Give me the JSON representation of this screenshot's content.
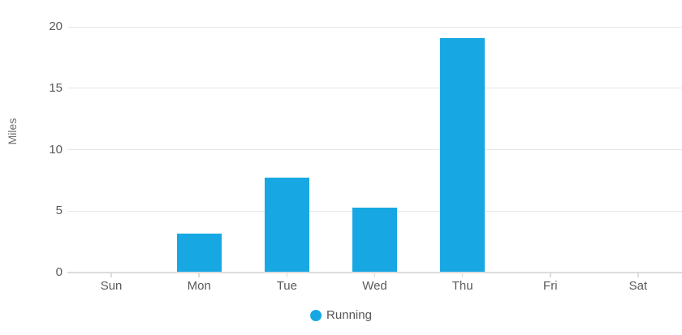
{
  "chart_data": {
    "type": "bar",
    "title": "",
    "categories": [
      "Sun",
      "Mon",
      "Tue",
      "Wed",
      "Thu",
      "Fri",
      "Sat"
    ],
    "series": [
      {
        "name": "Running",
        "values": [
          0,
          3.2,
          7.7,
          5.3,
          19.1,
          0,
          0
        ],
        "color": "#17a8e3"
      }
    ],
    "xlabel": "",
    "ylabel": "Miles",
    "ylim": [
      0,
      20
    ],
    "yticks": [
      0,
      5,
      10,
      15,
      20
    ],
    "grid": "horizontal",
    "legend_position": "bottom"
  },
  "colors": {
    "bar": "#17a8e3",
    "gridline": "#e6e6e6",
    "axis_line": "#dcdcdc",
    "tick_label": "#58595b",
    "axis_title": "#6d6d6d",
    "legend_text": "#565656",
    "background": "#ffffff"
  },
  "legend": {
    "items": [
      {
        "label": "Running",
        "color": "#17a8e3"
      }
    ]
  }
}
